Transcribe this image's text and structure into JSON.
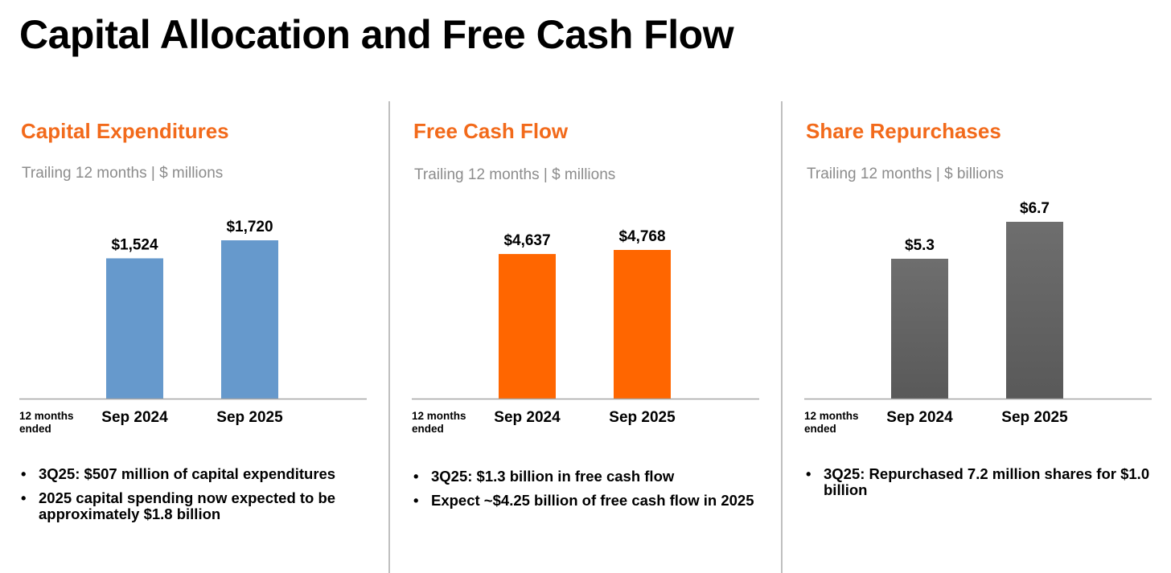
{
  "page": {
    "title": "Capital Allocation and Free Cash Flow"
  },
  "x_axis_note": "12 months\nended",
  "panels": [
    {
      "title": "Capital Expenditures",
      "subtitle": "Trailing 12 months | $ millions",
      "bullets": [
        "3Q25: $507 million of capital expenditures",
        "2025 capital spending now expected to be approximately $1.8 billion"
      ]
    },
    {
      "title": "Free Cash Flow",
      "subtitle": "Trailing 12 months | $ millions",
      "bullets": [
        "3Q25: $1.3 billion in free cash flow",
        "Expect ~$4.25 billion of free cash flow in 2025"
      ]
    },
    {
      "title": "Share Repurchases",
      "subtitle": "Trailing 12 months | $ billions",
      "bullets": [
        "3Q25: Repurchased 7.2 million shares for $1.0 billion"
      ]
    }
  ],
  "chart_data": [
    {
      "type": "bar",
      "title": "Capital Expenditures",
      "subtitle": "Trailing 12 months | $ millions",
      "categories": [
        "Sep 2024",
        "Sep 2025"
      ],
      "values": [
        1524,
        1720
      ],
      "data_labels": [
        "$1,524",
        "$1,720"
      ],
      "color": "#6699cc"
    },
    {
      "type": "bar",
      "title": "Free Cash Flow",
      "subtitle": "Trailing 12 months | $ millions",
      "categories": [
        "Sep 2024",
        "Sep 2025"
      ],
      "values": [
        4637,
        4768
      ],
      "data_labels": [
        "$4,637",
        "$4,768"
      ],
      "color": "#ff6600"
    },
    {
      "type": "bar",
      "title": "Share Repurchases",
      "subtitle": "Trailing 12 months | $ billions",
      "categories": [
        "Sep 2024",
        "Sep 2025"
      ],
      "values": [
        5.3,
        6.7
      ],
      "data_labels": [
        "$5.3",
        "$6.7"
      ],
      "color": "#595959"
    }
  ]
}
